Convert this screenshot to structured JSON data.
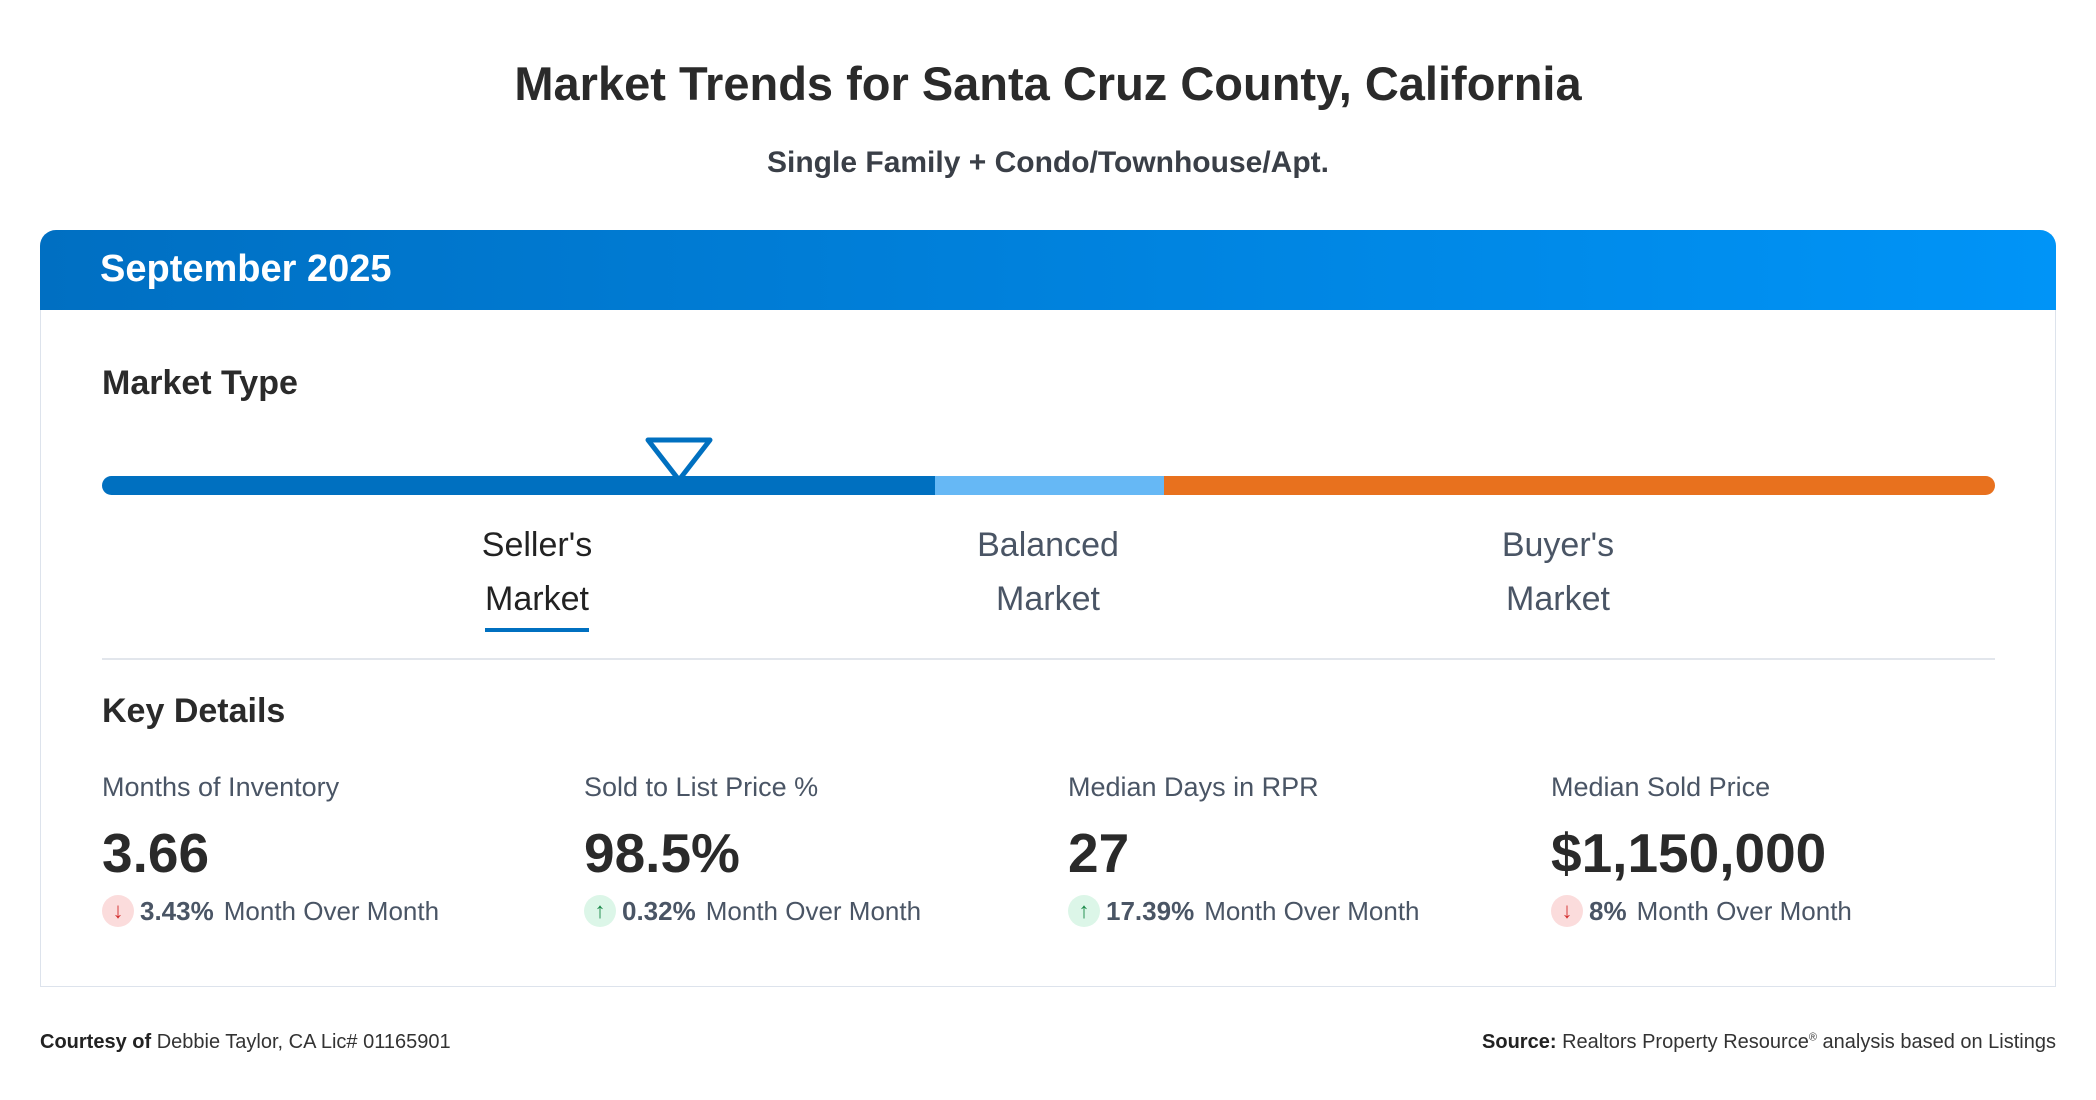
{
  "title": "Market Trends for Santa Cruz County, California",
  "subtitle": "Single Family + Condo/Townhouse/Apt.",
  "period": "September 2025",
  "market_type": {
    "heading": "Market Type",
    "marker_position_fraction": 0.305,
    "segments": [
      {
        "color": "#0070c0"
      },
      {
        "color": "#66b8f5"
      },
      {
        "color": "#e8711e"
      }
    ],
    "labels": [
      {
        "line1": "Seller's",
        "line2": "Market",
        "active": true
      },
      {
        "line1": "Balanced",
        "line2": "Market",
        "active": false
      },
      {
        "line1": "Buyer's",
        "line2": "Market",
        "active": false
      }
    ]
  },
  "key_details": {
    "heading": "Key Details",
    "stats": [
      {
        "label": "Months of Inventory",
        "value": "3.66",
        "direction": "down",
        "change": "3.43%",
        "change_label": "Month Over Month"
      },
      {
        "label": "Sold to List Price %",
        "value": "98.5%",
        "direction": "up",
        "change": "0.32%",
        "change_label": "Month Over Month"
      },
      {
        "label": "Median Days in RPR",
        "value": "27",
        "direction": "up",
        "change": "17.39%",
        "change_label": "Month Over Month"
      },
      {
        "label": "Median Sold Price",
        "value": "$1,150,000",
        "direction": "down",
        "change": "8%",
        "change_label": "Month Over Month"
      }
    ]
  },
  "footer": {
    "courtesy_label": "Courtesy of",
    "courtesy_text": "Debbie Taylor, CA Lic# 01165901",
    "source_label": "Source:",
    "source_text": "Realtors Property Resource",
    "source_reg": "®",
    "source_tail": " analysis based on Listings"
  },
  "colors": {
    "accent": "#0070c0",
    "up": "#1b8a4a",
    "down": "#d32f2f"
  }
}
